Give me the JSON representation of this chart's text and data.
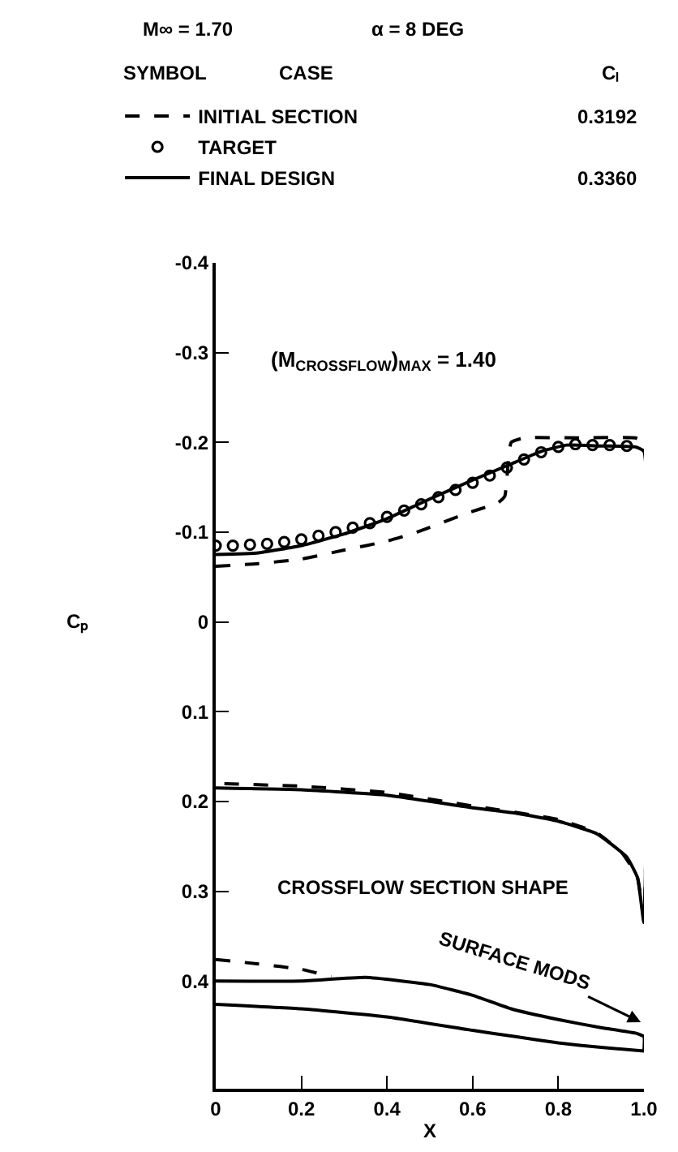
{
  "chart_data": {
    "type": "line",
    "xlabel": "X",
    "ylabel": "Cₚ",
    "xlim": [
      0,
      1
    ],
    "xticks": [
      0,
      0.2,
      0.4,
      0.6,
      0.8,
      {
        "value": 1,
        "label": "1.0"
      }
    ],
    "ylim": [
      0.52,
      -0.4
    ],
    "yticks": [
      -0.4,
      -0.3,
      -0.2,
      -0.1,
      0,
      0.1,
      0.2,
      0.3,
      0.4
    ],
    "legend": "top",
    "annotations": [
      "M∞ = 1.70",
      "α = 8 DEG",
      "CASE",
      "SYMBOL",
      "Cₗ",
      "0.3192",
      "0.3360",
      "(M$_{CROSSFLOW}$)$_{MAX}$ = 1.40",
      "CROSSFLOW SECTION SHAPE",
      "SURFACE MODS"
    ],
    "series": [
      {
        "name": "INITIAL SECTION",
        "color": "#000000",
        "line_style": "dashed",
        "x": [
          0,
          0.1,
          0.2,
          0.3,
          0.4,
          0.47,
          0.58,
          0.66,
          0.675,
          0.69,
          0.72,
          0.85,
          0.98,
          1,
          1,
          0.985,
          0.95,
          0.89,
          0.8,
          0.6,
          0.4,
          0.2,
          0
        ],
        "values": [
          -0.062,
          -0.065,
          -0.07,
          -0.08,
          -0.09,
          -0.1,
          -0.12,
          -0.133,
          -0.14,
          -0.2,
          -0.205,
          -0.205,
          -0.205,
          -0.2,
          0.33,
          0.285,
          0.258,
          0.235,
          0.22,
          0.205,
          0.19,
          0.183,
          0.18
        ]
      },
      {
        "name": "TARGET",
        "type": "scatter",
        "marker": "circle",
        "color": "#000000",
        "x": [
          0,
          0.04,
          0.08,
          0.12,
          0.16,
          0.2,
          0.24,
          0.28,
          0.32,
          0.36,
          0.4,
          0.44,
          0.48,
          0.52,
          0.56,
          0.6,
          0.64,
          0.68,
          0.72,
          0.76,
          0.8,
          0.84,
          0.88,
          0.92,
          0.96
        ],
        "values": [
          -0.085,
          -0.085,
          -0.086,
          -0.087,
          -0.089,
          -0.092,
          -0.096,
          -0.1,
          -0.105,
          -0.11,
          -0.117,
          -0.124,
          -0.131,
          -0.139,
          -0.147,
          -0.155,
          -0.163,
          -0.172,
          -0.181,
          -0.189,
          -0.195,
          -0.198,
          -0.197,
          -0.197,
          -0.196
        ]
      },
      {
        "name": "FINAL DESIGN",
        "color": "#000000",
        "line_style": "solid",
        "x": [
          0,
          0.1,
          0.2,
          0.3,
          0.4,
          0.5,
          0.6,
          0.7,
          0.76,
          0.82,
          0.9,
          0.98,
          1,
          1,
          0.985,
          0.96,
          0.89,
          0.8,
          0.7,
          0.6,
          0.4,
          0.2,
          0
        ],
        "values": [
          -0.075,
          -0.077,
          -0.085,
          -0.098,
          -0.115,
          -0.137,
          -0.158,
          -0.178,
          -0.19,
          -0.197,
          -0.196,
          -0.195,
          -0.19,
          0.335,
          0.285,
          0.262,
          0.236,
          0.222,
          0.213,
          0.207,
          0.193,
          0.187,
          0.185
        ]
      },
      {
        "color": "#000000",
        "line_style": "dashed",
        "x": [
          0,
          0.1,
          0.2,
          0.27
        ],
        "values": [
          0.376,
          0.381,
          0.387,
          0.395
        ]
      },
      {
        "color": "#000000",
        "line_style": "solid",
        "x": [
          0,
          0.2,
          0.35,
          0.5,
          0.6,
          0.69,
          0.8,
          0.9,
          0.98,
          1,
          1
        ],
        "values": [
          0.4,
          0.4,
          0.396,
          0.404,
          0.416,
          0.431,
          0.443,
          0.452,
          0.458,
          0.462,
          0.478
        ]
      },
      {
        "color": "#000000",
        "line_style": "solid",
        "x": [
          0,
          0.2,
          0.4,
          0.6,
          0.7,
          0.8,
          0.9,
          1
        ],
        "values": [
          0.426,
          0.431,
          0.44,
          0.455,
          0.462,
          0.469,
          0.474,
          0.478
        ]
      }
    ]
  }
}
